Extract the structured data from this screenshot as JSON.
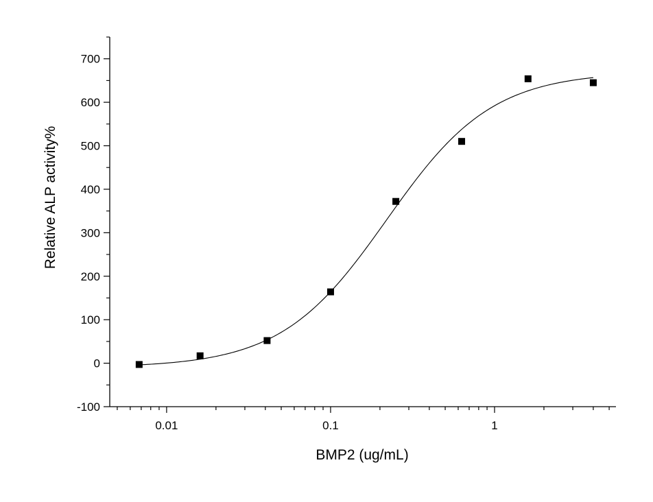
{
  "chart_data": {
    "type": "scatter",
    "title": "",
    "xlabel": "BMP2 (ug/mL)",
    "ylabel": "Relative ALP activity%",
    "xscale": "log",
    "xlim": [
      0.0045,
      5.5
    ],
    "ylim": [
      -100,
      750
    ],
    "xticks": [
      {
        "value": 0.01,
        "label": "0.01"
      },
      {
        "value": 0.1,
        "label": "0.1"
      },
      {
        "value": 1,
        "label": "1"
      }
    ],
    "yticks": [
      {
        "value": -100,
        "label": "-100"
      },
      {
        "value": 0,
        "label": "0"
      },
      {
        "value": 100,
        "label": "100"
      },
      {
        "value": 200,
        "label": "200"
      },
      {
        "value": 300,
        "label": "300"
      },
      {
        "value": 400,
        "label": "400"
      },
      {
        "value": 500,
        "label": "500"
      },
      {
        "value": 600,
        "label": "600"
      },
      {
        "value": 700,
        "label": "700"
      }
    ],
    "grid": false,
    "marker": "square",
    "marker_color": "#000000",
    "series": [
      {
        "x": [
          0.0068,
          0.016,
          0.041,
          0.1,
          0.25,
          0.63,
          1.6,
          4.0
        ],
        "y": [
          -3,
          17,
          52,
          164,
          372,
          510,
          654,
          645
        ]
      }
    ],
    "fit": {
      "type": "4PL",
      "bottom": -10,
      "top": 670,
      "ec50": 0.22,
      "hill": 1.35,
      "color": "#000000"
    }
  }
}
